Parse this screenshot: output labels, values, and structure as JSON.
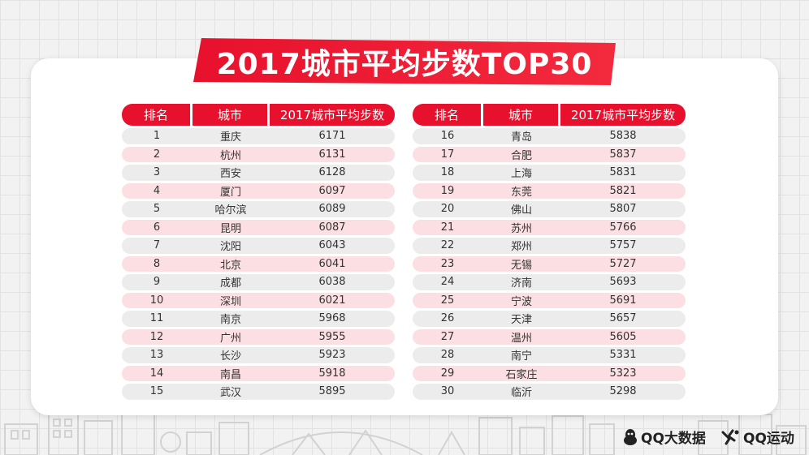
{
  "title": "2017城市平均步数TOP30",
  "chart_data": {
    "type": "table",
    "title": "2017城市平均步数TOP30",
    "columns": [
      "排名",
      "城市",
      "2017城市平均步数"
    ],
    "rows": [
      {
        "rank": "1",
        "city": "重庆",
        "steps": 6171
      },
      {
        "rank": "2",
        "city": "杭州",
        "steps": 6131
      },
      {
        "rank": "3",
        "city": "西安",
        "steps": 6128
      },
      {
        "rank": "4",
        "city": "厦门",
        "steps": 6097
      },
      {
        "rank": "5",
        "city": "哈尔滨",
        "steps": 6089
      },
      {
        "rank": "6",
        "city": "昆明",
        "steps": 6087
      },
      {
        "rank": "7",
        "city": "沈阳",
        "steps": 6043
      },
      {
        "rank": "8",
        "city": "北京",
        "steps": 6041
      },
      {
        "rank": "9",
        "city": "成都",
        "steps": 6038
      },
      {
        "rank": "10",
        "city": "深圳",
        "steps": 6021
      },
      {
        "rank": "11",
        "city": "南京",
        "steps": 5968
      },
      {
        "rank": "12",
        "city": "广州",
        "steps": 5955
      },
      {
        "rank": "13",
        "city": "长沙",
        "steps": 5923
      },
      {
        "rank": "14",
        "city": "南昌",
        "steps": 5918
      },
      {
        "rank": "15",
        "city": "武汉",
        "steps": 5895
      },
      {
        "rank": "16",
        "city": "青岛",
        "steps": 5838
      },
      {
        "rank": "17",
        "city": "合肥",
        "steps": 5837
      },
      {
        "rank": "18",
        "city": "上海",
        "steps": 5831
      },
      {
        "rank": "19",
        "city": "东莞",
        "steps": 5821
      },
      {
        "rank": "20",
        "city": "佛山",
        "steps": 5807
      },
      {
        "rank": "21",
        "city": "苏州",
        "steps": 5766
      },
      {
        "rank": "22",
        "city": "郑州",
        "steps": 5757
      },
      {
        "rank": "23",
        "city": "无锡",
        "steps": 5727
      },
      {
        "rank": "24",
        "city": "济南",
        "steps": 5693
      },
      {
        "rank": "25",
        "city": "宁波",
        "steps": 5691
      },
      {
        "rank": "26",
        "city": "天津",
        "steps": 5657
      },
      {
        "rank": "27",
        "city": "温州",
        "steps": 5605
      },
      {
        "rank": "28",
        "city": "南宁",
        "steps": 5331
      },
      {
        "rank": "29",
        "city": "石家庄",
        "steps": 5323
      },
      {
        "rank": "30",
        "city": "临沂",
        "steps": 5298
      }
    ]
  },
  "brands": {
    "qq_bigdata": "QQ大数据",
    "qq_sport": "QQ运动"
  },
  "colors": {
    "accent": "#e8112d",
    "row_pink": "#fcdfe2",
    "row_gray": "#ececec"
  },
  "icons": {
    "qq_bigdata": "penguin-icon",
    "qq_sport": "runner-icon"
  }
}
